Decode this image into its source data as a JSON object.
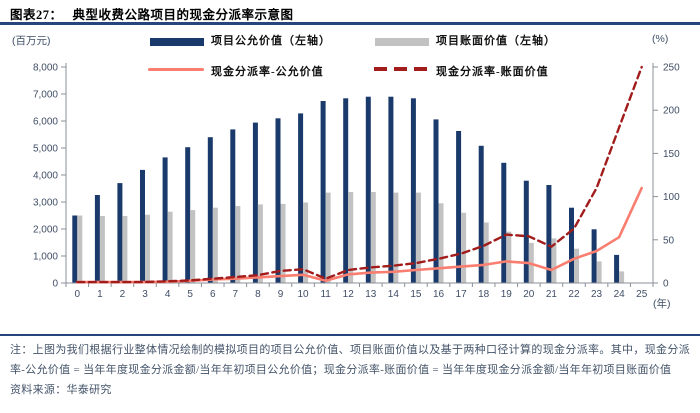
{
  "header": {
    "label_prefix": "图表27：",
    "title": "典型收费公路项目的现金分派率示意图"
  },
  "chart_data": {
    "type": "bar+line combo",
    "title": "典型收费公路项目的现金分派率示意图",
    "categories": [
      "0",
      "1",
      "2",
      "3",
      "4",
      "5",
      "6",
      "7",
      "8",
      "9",
      "10",
      "11",
      "12",
      "13",
      "14",
      "15",
      "16",
      "17",
      "18",
      "19",
      "20",
      "21",
      "22",
      "23",
      "24",
      "25"
    ],
    "series": [
      {
        "name": "项目公允价值（左轴）",
        "type": "bar",
        "axis": "left",
        "color": "#1A3A6B",
        "values": [
          2500,
          3260,
          3700,
          4190,
          4650,
          5030,
          5400,
          5690,
          5940,
          6100,
          6280,
          6740,
          6840,
          6900,
          6900,
          6840,
          6060,
          5630,
          5080,
          4450,
          3790,
          3630,
          2790,
          1990,
          1040,
          0
        ]
      },
      {
        "name": "项目账面价值（左轴）",
        "type": "bar",
        "axis": "left",
        "color": "#C2C2C2",
        "values": [
          2500,
          2480,
          2480,
          2530,
          2640,
          2700,
          2790,
          2850,
          2910,
          2930,
          2980,
          3350,
          3370,
          3370,
          3350,
          3350,
          2950,
          2600,
          2240,
          1900,
          1490,
          1650,
          1270,
          800,
          430,
          0
        ]
      },
      {
        "name": "现金分派率-公允价值",
        "type": "line",
        "style": "solid",
        "axis": "right",
        "color": "#F97E6F",
        "values": [
          1,
          1,
          1,
          1,
          1.5,
          2.5,
          4,
          5,
          6.5,
          8,
          9.5,
          2.5,
          10,
          12,
          13,
          15,
          17,
          19,
          21,
          25,
          23,
          15,
          28,
          37,
          53,
          110
        ]
      },
      {
        "name": "现金分派率-账面价值",
        "type": "line",
        "style": "dashed",
        "axis": "right",
        "color": "#A21C1C",
        "values": [
          1,
          1,
          1,
          1.2,
          2,
          3,
          5,
          7,
          9,
          14,
          16,
          5,
          15,
          18,
          20,
          23,
          28,
          34,
          43,
          56,
          54,
          42,
          63,
          110,
          180,
          250
        ]
      }
    ],
    "left_axis": {
      "unit": "(百万元)",
      "min": 0,
      "max": 8000,
      "ticks": [
        "0",
        "1,000",
        "2,000",
        "3,000",
        "4,000",
        "5,000",
        "6,000",
        "7,000",
        "8,000"
      ]
    },
    "right_axis": {
      "unit": "(%)",
      "min": 0,
      "max": 250,
      "ticks": [
        "0",
        "50",
        "100",
        "150",
        "200",
        "250"
      ]
    },
    "x_axis": {
      "unit": "(年)",
      "labels": [
        "0",
        "1",
        "2",
        "3",
        "4",
        "5",
        "6",
        "7",
        "8",
        "9",
        "10",
        "11",
        "12",
        "13",
        "14",
        "15",
        "16",
        "17",
        "18",
        "19",
        "20",
        "21",
        "22",
        "23",
        "24",
        "25"
      ]
    },
    "grid": "off",
    "legend_position": "top"
  },
  "footer": {
    "note": "注：上图为我们根据行业整体情况绘制的模拟项目的项目公允价值、项目账面价值以及基于两种口径计算的现金分派率。其中，现金分派率-公允价值 = 当年年度现金分派金额/当年年初项目公允价值；现金分派率-账面价值 = 当年年度现金分派金额/当年年初项目账面价值",
    "source": "资料来源：华泰研究"
  }
}
